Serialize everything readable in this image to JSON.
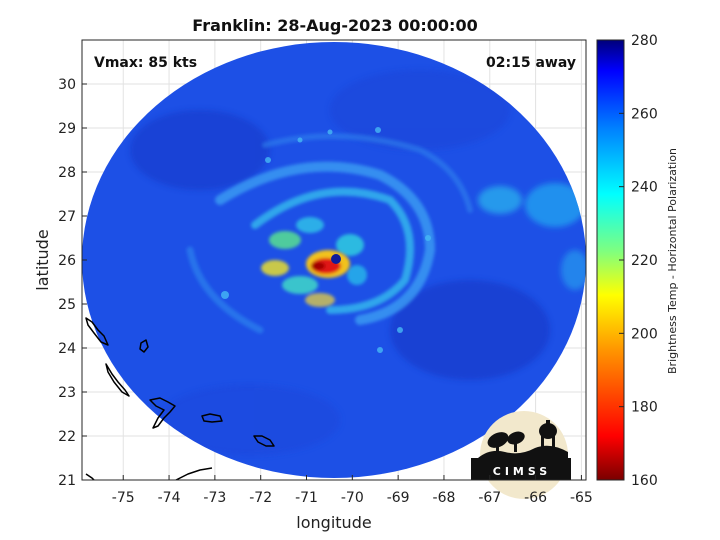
{
  "title": "Franklin: 28-Aug-2023 00:00:00",
  "vmax_label": "Vmax: 85 kts",
  "time_label": "02:15 away",
  "xlabel": "longitude",
  "ylabel": "latitude",
  "colorbar": {
    "label": "Brightness Temp - Horizontal Polarization",
    "min": 160,
    "max": 280,
    "ticks": [
      "280",
      "260",
      "240",
      "220",
      "200",
      "180",
      "160"
    ]
  },
  "map": {
    "x_ticks": [
      "-75",
      "-74",
      "-73",
      "-72",
      "-71",
      "-70",
      "-69",
      "-68",
      "-67",
      "-66",
      "-65"
    ],
    "y_ticks": [
      "30",
      "29",
      "28",
      "27",
      "26",
      "25",
      "24",
      "23",
      "22",
      "21"
    ],
    "xlim": [
      -75.9,
      -64.9
    ],
    "ylim": [
      21.0,
      31.0
    ],
    "storm_center": {
      "lon": -70.2,
      "lat": 26.0
    }
  },
  "logo": {
    "text": "CIMSS"
  },
  "colors": {
    "background_scan": "#1c52e8",
    "eyewall": "#e01010",
    "inner_band": "#f5c000",
    "outer_band": "#25d0e0",
    "land_outline": "#000000"
  }
}
